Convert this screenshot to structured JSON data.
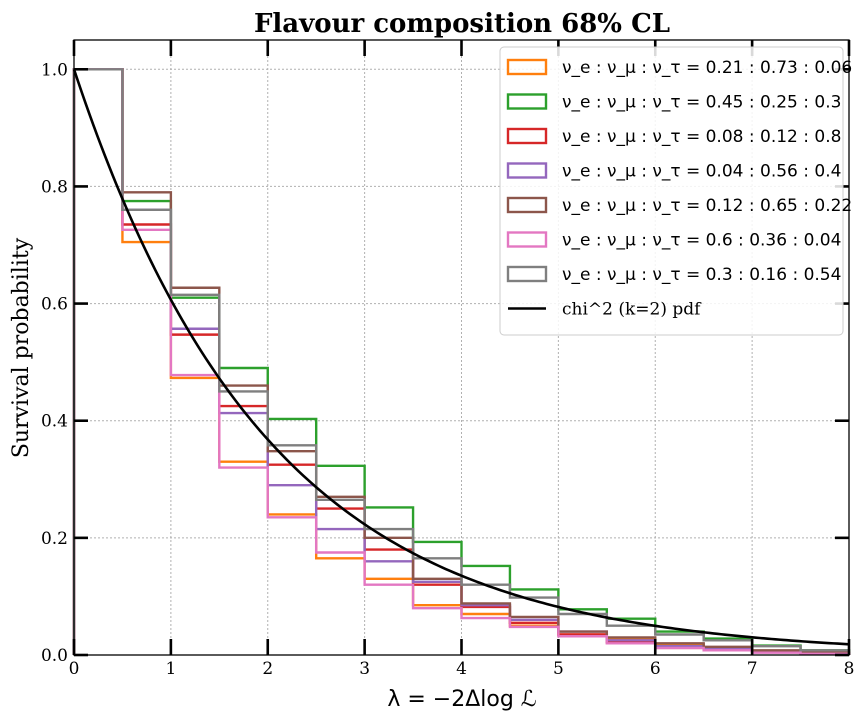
{
  "chart_data": {
    "type": "line",
    "title": "Flavour composition 68% CL",
    "xlabel": "λ = −2Δlog ℒ",
    "ylabel": "Survival probability",
    "xlim": [
      0,
      8
    ],
    "ylim": [
      0,
      1.05
    ],
    "xticks": [
      0,
      1,
      2,
      3,
      4,
      5,
      6,
      7,
      8
    ],
    "yticks": [
      0.0,
      0.2,
      0.4,
      0.6,
      0.8,
      1.0
    ],
    "xtick_labels": [
      "0",
      "1",
      "2",
      "3",
      "4",
      "5",
      "6",
      "7",
      "8"
    ],
    "ytick_labels": [
      "0.0",
      "0.2",
      "0.4",
      "0.6",
      "0.8",
      "1.0"
    ],
    "grid": true,
    "legend_position": "top-right",
    "bin_edges": [
      0,
      0.5,
      1,
      1.5,
      2,
      2.5,
      3,
      3.5,
      4,
      4.5,
      5,
      5.5,
      6,
      6.5,
      7,
      7.5,
      8
    ],
    "series": [
      {
        "name": "ν_e : ν_μ : ν_τ = 0.21 : 0.73 : 0.06",
        "color": "#ff7f0e",
        "values": [
          1.0,
          0.705,
          0.473,
          0.33,
          0.24,
          0.165,
          0.13,
          0.085,
          0.07,
          0.05,
          0.035,
          0.027,
          0.018,
          0.012,
          0.007,
          0.004
        ]
      },
      {
        "name": "ν_e : ν_μ : ν_τ = 0.45 : 0.25 : 0.3",
        "color": "#2ca02c",
        "values": [
          1.0,
          0.775,
          0.61,
          0.49,
          0.403,
          0.323,
          0.252,
          0.193,
          0.152,
          0.112,
          0.078,
          0.062,
          0.04,
          0.028,
          0.016,
          0.008
        ]
      },
      {
        "name": "ν_e : ν_μ : ν_τ = 0.08 : 0.12 : 0.8",
        "color": "#d62728",
        "values": [
          1.0,
          0.735,
          0.547,
          0.425,
          0.325,
          0.25,
          0.18,
          0.12,
          0.082,
          0.055,
          0.035,
          0.022,
          0.012,
          0.008,
          0.005,
          0.003
        ]
      },
      {
        "name": "ν_e : ν_μ : ν_τ = 0.04 : 0.56 : 0.4",
        "color": "#9467bd",
        "values": [
          1.0,
          0.76,
          0.557,
          0.413,
          0.29,
          0.215,
          0.16,
          0.125,
          0.085,
          0.06,
          0.04,
          0.025,
          0.015,
          0.01,
          0.006,
          0.003
        ]
      },
      {
        "name": "ν_e : ν_μ : ν_τ = 0.12 : 0.65 : 0.22",
        "color": "#8c564b",
        "values": [
          1.0,
          0.79,
          0.627,
          0.46,
          0.348,
          0.27,
          0.2,
          0.13,
          0.088,
          0.065,
          0.04,
          0.03,
          0.02,
          0.014,
          0.008,
          0.004
        ]
      },
      {
        "name": "ν_e : ν_μ : ν_τ = 0.6 : 0.36 : 0.04",
        "color": "#e377c2",
        "values": [
          1.0,
          0.726,
          0.478,
          0.32,
          0.235,
          0.175,
          0.12,
          0.08,
          0.063,
          0.048,
          0.032,
          0.02,
          0.012,
          0.008,
          0.004,
          0.002
        ]
      },
      {
        "name": "ν_e : ν_μ : ν_τ = 0.3 : 0.16 : 0.54",
        "color": "#7f7f7f",
        "values": [
          1.0,
          0.76,
          0.615,
          0.45,
          0.358,
          0.265,
          0.215,
          0.165,
          0.12,
          0.098,
          0.07,
          0.05,
          0.035,
          0.025,
          0.015,
          0.008
        ]
      }
    ],
    "curve": {
      "name": "chi^2 (k=2) pdf",
      "color": "#000000",
      "function": "exp(-x/2)"
    },
    "legend_entries": [
      {
        "prefix": "ν_e : ν_μ : ν_τ = ",
        "ratio": "0.21 : 0.73 : 0.06"
      },
      {
        "prefix": "ν_e : ν_μ : ν_τ = ",
        "ratio": "0.45 : 0.25 : 0.3"
      },
      {
        "prefix": "ν_e : ν_μ : ν_τ = ",
        "ratio": "0.08 : 0.12 : 0.8"
      },
      {
        "prefix": "ν_e : ν_μ : ν_τ = ",
        "ratio": "0.04 : 0.56 : 0.4"
      },
      {
        "prefix": "ν_e : ν_μ : ν_τ = ",
        "ratio": "0.12 : 0.65 : 0.22"
      },
      {
        "prefix": "ν_e : ν_μ : ν_τ = ",
        "ratio": "0.6 : 0.36 : 0.04"
      },
      {
        "prefix": "ν_e : ν_μ : ν_τ = ",
        "ratio": "0.3 : 0.16 : 0.54"
      }
    ]
  }
}
